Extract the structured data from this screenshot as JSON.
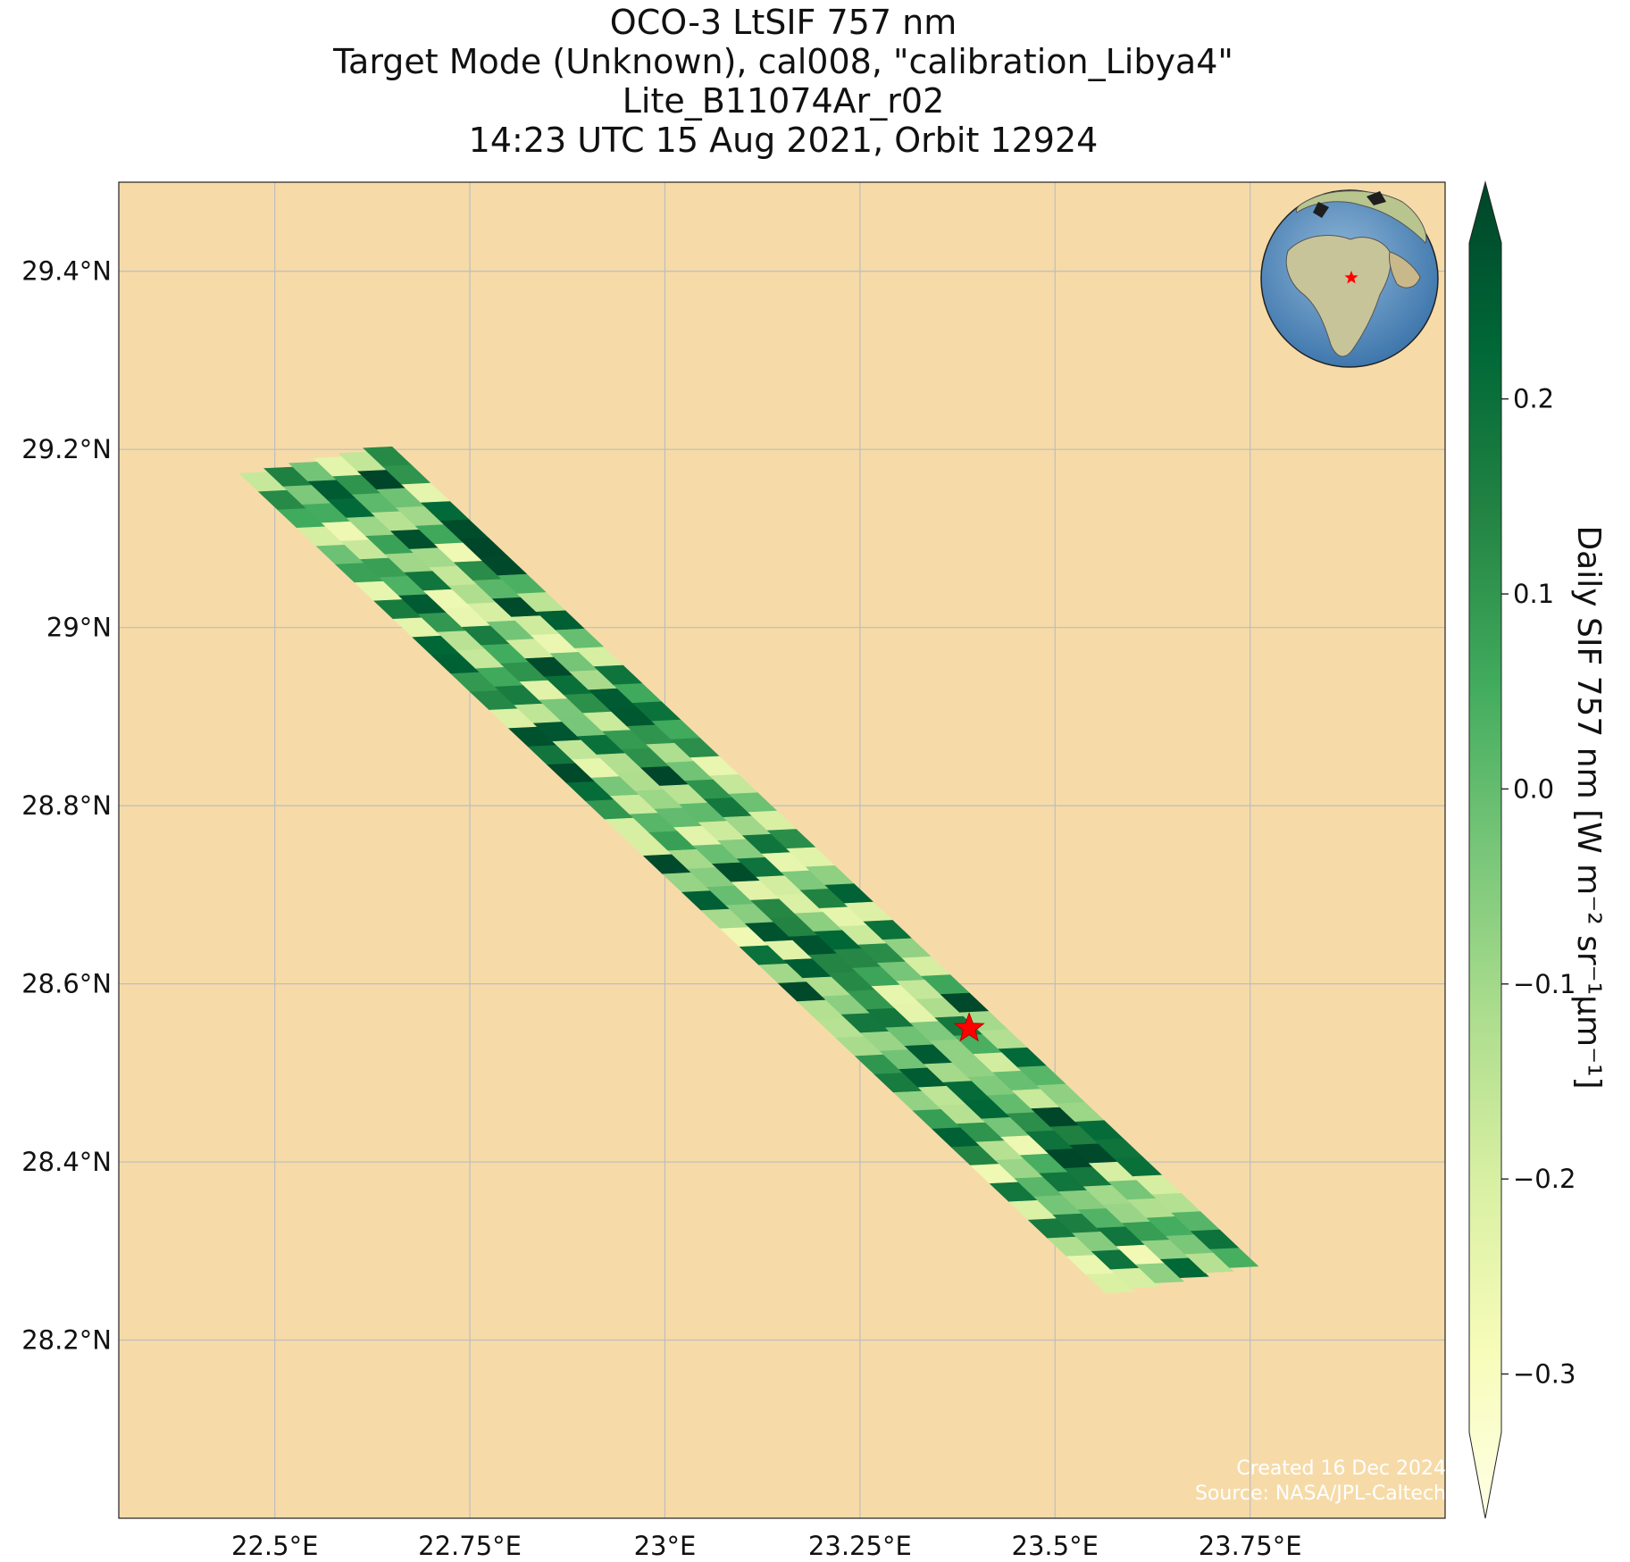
{
  "title": {
    "line1": "OCO-3 LtSIF 757 nm",
    "line2": "Target Mode (Unknown), cal008, \"calibration_Libya4\"",
    "line3": "Lite_B11074Ar_r02",
    "line4": "14:23 UTC 15 Aug 2021, Orbit 12924"
  },
  "map": {
    "lon_range": [
      22.3,
      24.0
    ],
    "lat_range": [
      28.0,
      29.5
    ],
    "lon_ticks": [
      {
        "value": 22.5,
        "label": "22.5°E"
      },
      {
        "value": 22.75,
        "label": "22.75°E"
      },
      {
        "value": 23.0,
        "label": "23°E"
      },
      {
        "value": 23.25,
        "label": "23.25°E"
      },
      {
        "value": 23.5,
        "label": "23.5°E"
      },
      {
        "value": 23.75,
        "label": "23.75°E"
      }
    ],
    "lat_ticks": [
      {
        "value": 29.4,
        "label": "29.4°N"
      },
      {
        "value": 29.2,
        "label": "29.2°N"
      },
      {
        "value": 29.0,
        "label": "29°N"
      },
      {
        "value": 28.8,
        "label": "28.8°N"
      },
      {
        "value": 28.6,
        "label": "28.6°N"
      },
      {
        "value": 28.4,
        "label": "28.4°N"
      },
      {
        "value": 28.2,
        "label": "28.2°N"
      }
    ],
    "background_color": "#f6dba8",
    "grid_color": "#bdbdbd",
    "swath": {
      "start": {
        "lon": 22.55,
        "lat": 29.19
      },
      "end": {
        "lon": 23.66,
        "lat": 28.27
      },
      "cols": 6,
      "rows": 45
    },
    "target": {
      "lon": 23.39,
      "lat": 28.55,
      "color": "#ff0000",
      "icon": "star-icon"
    },
    "inset_globe": {
      "icon": "globe-icon",
      "marker_color": "#ff0000"
    }
  },
  "colorbar": {
    "title": "Daily SIF 757 nm [W m⁻² sr⁻¹μm⁻¹]",
    "vmin": -0.33,
    "vmax": 0.28,
    "ticks": [
      {
        "value": 0.2,
        "label": "0.2"
      },
      {
        "value": 0.1,
        "label": "0.1"
      },
      {
        "value": 0.0,
        "label": "0.0"
      },
      {
        "value": -0.1,
        "label": "−0.1"
      },
      {
        "value": -0.2,
        "label": "−0.2"
      },
      {
        "value": -0.3,
        "label": "−0.3"
      }
    ],
    "colormap": [
      "#ffffe5",
      "#f7fcb9",
      "#d9f0a3",
      "#addd8e",
      "#78c679",
      "#41ab5d",
      "#238443",
      "#006837",
      "#004529"
    ],
    "extend": "both"
  },
  "credit": {
    "line1": "Created 16 Dec 2024",
    "line2": "Source: NASA/JPL-Caltech"
  }
}
